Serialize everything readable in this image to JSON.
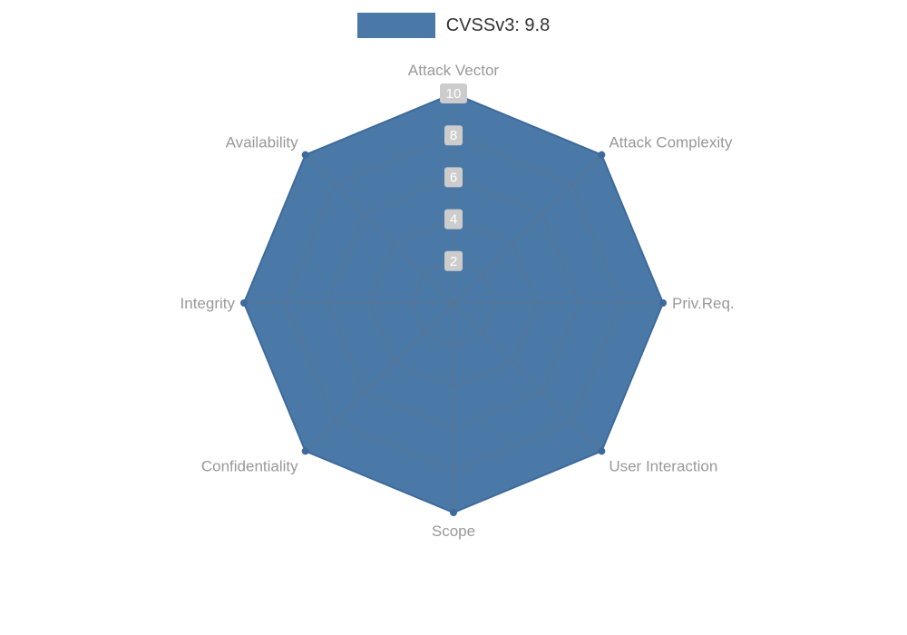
{
  "legend": {
    "label": "CVSSv3: 9.8"
  },
  "chart_data": {
    "type": "radar",
    "title": "CVSSv3: 9.8",
    "categories": [
      "Attack Vector",
      "Attack Complexity",
      "Priv.Req.",
      "User Interaction",
      "Scope",
      "Confidentiality",
      "Integrity",
      "Availability"
    ],
    "series": [
      {
        "name": "CVSSv3: 9.8",
        "values": [
          10,
          10,
          10,
          10,
          10,
          10,
          10,
          10
        ]
      }
    ],
    "max": 10,
    "radial_ticks": [
      2,
      4,
      6,
      8,
      10
    ],
    "shape": "polygon",
    "grid": true,
    "legend_position": "top-center",
    "colors": {
      "fill": "#4a79a8",
      "edge": "#3d6a9b",
      "grid": "#6e6e6e",
      "label": "#999999",
      "tick_bg": "#cccccc",
      "tick_text": "#ffffff",
      "legend_text": "#333333"
    }
  }
}
